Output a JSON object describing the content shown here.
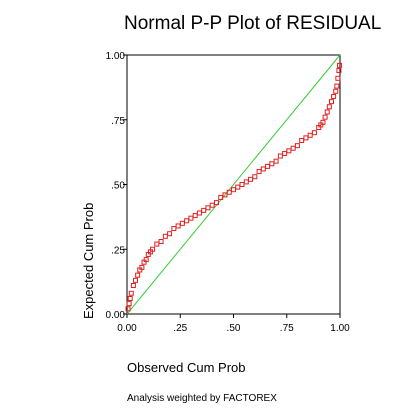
{
  "chart_data": {
    "type": "scatter",
    "title": "Normal P-P Plot of RESIDUAL",
    "xlabel": "Observed Cum Prob",
    "ylabel": "Expected Cum Prob",
    "footnote": "Analysis weighted by FACTOREX",
    "xlim": [
      0,
      1
    ],
    "ylim": [
      0,
      1
    ],
    "x_ticks": [
      0,
      0.25,
      0.5,
      0.75,
      1
    ],
    "x_tick_labels": [
      "0.00",
      ".25",
      ".50",
      ".75",
      "1.00"
    ],
    "y_ticks": [
      0,
      0.25,
      0.5,
      0.75,
      1
    ],
    "y_tick_labels": [
      "0.00",
      ".25",
      ".50",
      ".75",
      "1.00"
    ],
    "grid": false,
    "reference_line": {
      "from": [
        0,
        0
      ],
      "to": [
        1,
        1
      ],
      "color": "#33cc33"
    },
    "marker_color": "#e02020",
    "series": [
      {
        "name": "",
        "x": [
          0.005,
          0.01,
          0.015,
          0.02,
          0.03,
          0.04,
          0.05,
          0.06,
          0.07,
          0.08,
          0.09,
          0.1,
          0.11,
          0.12,
          0.14,
          0.16,
          0.18,
          0.2,
          0.22,
          0.24,
          0.26,
          0.28,
          0.3,
          0.32,
          0.34,
          0.36,
          0.38,
          0.4,
          0.42,
          0.44,
          0.46,
          0.48,
          0.5,
          0.52,
          0.54,
          0.56,
          0.58,
          0.6,
          0.62,
          0.64,
          0.66,
          0.68,
          0.7,
          0.72,
          0.74,
          0.76,
          0.78,
          0.8,
          0.82,
          0.84,
          0.86,
          0.88,
          0.9,
          0.91,
          0.92,
          0.93,
          0.94,
          0.95,
          0.96,
          0.97,
          0.98,
          0.985,
          0.99,
          0.995,
          0.998
        ],
        "y": [
          0.02,
          0.04,
          0.06,
          0.08,
          0.11,
          0.13,
          0.15,
          0.17,
          0.18,
          0.2,
          0.21,
          0.23,
          0.24,
          0.25,
          0.27,
          0.28,
          0.3,
          0.31,
          0.33,
          0.34,
          0.35,
          0.36,
          0.37,
          0.38,
          0.39,
          0.4,
          0.41,
          0.42,
          0.43,
          0.45,
          0.46,
          0.47,
          0.48,
          0.49,
          0.5,
          0.51,
          0.52,
          0.53,
          0.55,
          0.56,
          0.57,
          0.58,
          0.59,
          0.61,
          0.62,
          0.63,
          0.64,
          0.65,
          0.67,
          0.68,
          0.69,
          0.7,
          0.72,
          0.73,
          0.74,
          0.76,
          0.78,
          0.8,
          0.82,
          0.84,
          0.86,
          0.88,
          0.91,
          0.94,
          0.96
        ]
      }
    ]
  }
}
